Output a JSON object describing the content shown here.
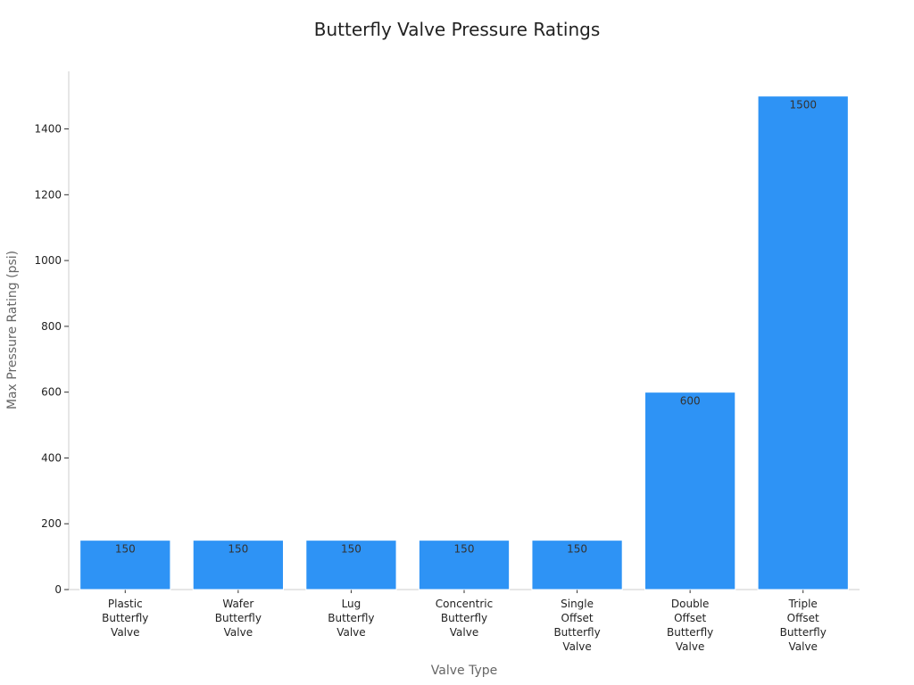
{
  "chart_data": {
    "type": "bar",
    "title": "Butterfly Valve Pressure Ratings",
    "xlabel": "Valve Type",
    "ylabel": "Max Pressure Rating (psi)",
    "categories": [
      [
        "Plastic",
        "Butterfly",
        "Valve"
      ],
      [
        "Wafer",
        "Butterfly",
        "Valve"
      ],
      [
        "Lug",
        "Butterfly",
        "Valve"
      ],
      [
        "Concentric",
        "Butterfly",
        "Valve"
      ],
      [
        "Single",
        "Offset",
        "Butterfly",
        "Valve"
      ],
      [
        "Double",
        "Offset",
        "Butterfly",
        "Valve"
      ],
      [
        "Triple",
        "Offset",
        "Butterfly",
        "Valve"
      ]
    ],
    "values": [
      150,
      150,
      150,
      150,
      150,
      600,
      1500
    ],
    "ylim": [
      0,
      1575
    ],
    "yticks": [
      0,
      200,
      400,
      600,
      800,
      1000,
      1200,
      1400
    ],
    "bar_color": "#2e93f5",
    "grid": false,
    "legend": "none"
  }
}
